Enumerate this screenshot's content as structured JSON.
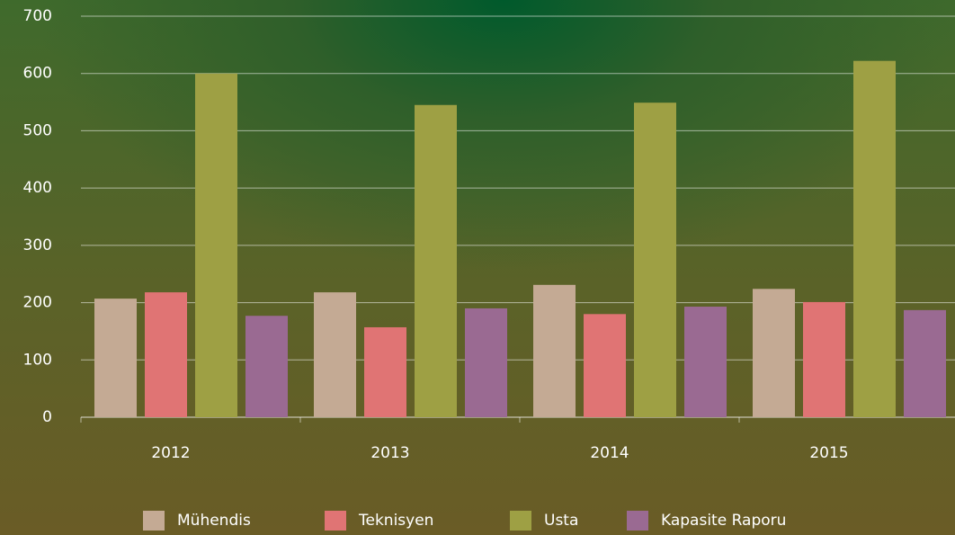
{
  "chart_data": {
    "type": "bar",
    "categories": [
      "2012",
      "2013",
      "2014",
      "2015"
    ],
    "series": [
      {
        "name": "Mühendis",
        "color": "#c4aa94",
        "values": [
          207,
          218,
          231,
          224
        ]
      },
      {
        "name": "Teknisyen",
        "color": "#e07474",
        "values": [
          218,
          157,
          180,
          201
        ]
      },
      {
        "name": "Usta",
        "color": "#9ea044",
        "values": [
          600,
          545,
          549,
          622
        ]
      },
      {
        "name": "Kapasite Raporu",
        "color": "#9a6a92",
        "values": [
          177,
          190,
          193,
          187
        ]
      }
    ],
    "ylim": [
      0,
      700
    ],
    "yticks": [
      0,
      100,
      200,
      300,
      400,
      500,
      600,
      700
    ],
    "grid": true,
    "legend": "bottom"
  }
}
